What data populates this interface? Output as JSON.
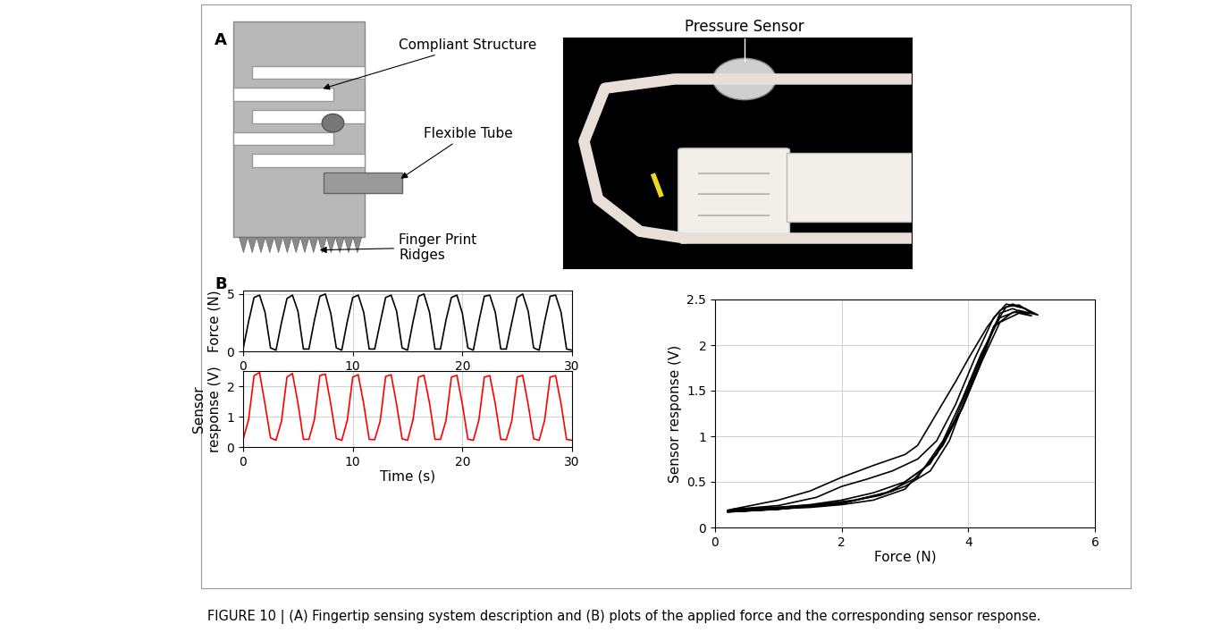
{
  "panel_labels": [
    "A",
    "B"
  ],
  "diagram": {
    "labels": [
      "Compliant Structure",
      "Flexible Tube",
      "Finger Print\nRidges"
    ]
  },
  "photo": {
    "labels": [
      "Pressure Sensor"
    ]
  },
  "caption": "FIGURE 10 | (A) Fingertip sensing system description and (B) plots of the applied force and the corresponding sensor response.",
  "chart_data": [
    {
      "type": "line",
      "ylabel": "Force (N)",
      "grid": true,
      "xlim": [
        0,
        30
      ],
      "xticks": [
        0,
        10,
        20,
        30
      ],
      "ylim": [
        0,
        5.3
      ],
      "yticks": [
        0,
        5
      ],
      "series": [
        {
          "color": "#000000",
          "x": [
            0,
            0.5,
            1,
            1.5,
            2,
            2.5,
            3,
            3.5,
            4,
            4.5,
            5,
            5.5,
            6,
            6.5,
            7,
            7.5,
            8,
            8.5,
            9,
            9.5,
            10,
            10.5,
            11,
            11.5,
            12,
            12.5,
            13,
            13.5,
            14,
            14.5,
            15,
            15.5,
            16,
            16.5,
            17,
            17.5,
            18,
            18.5,
            19,
            19.5,
            20,
            20.5,
            21,
            21.5,
            22,
            22.5,
            23,
            23.5,
            24,
            24.5,
            25,
            25.5,
            26,
            26.5,
            27,
            27.5,
            28,
            28.5,
            29,
            29.5,
            30
          ],
          "values": [
            0.2,
            2.6,
            4.7,
            4.9,
            3.4,
            0.3,
            0.1,
            2.5,
            4.6,
            4.9,
            3.5,
            0.2,
            0.2,
            2.7,
            4.8,
            5.0,
            3.3,
            0.3,
            0.1,
            2.6,
            4.7,
            4.9,
            3.4,
            0.2,
            0.2,
            2.5,
            4.7,
            4.9,
            3.5,
            0.3,
            0.1,
            2.6,
            4.8,
            5.0,
            3.4,
            0.2,
            0.2,
            2.7,
            4.7,
            4.9,
            3.3,
            0.3,
            0.1,
            2.6,
            4.8,
            4.9,
            3.4,
            0.2,
            0.2,
            2.5,
            4.7,
            5.0,
            3.5,
            0.3,
            0.1,
            2.6,
            4.8,
            4.9,
            3.4,
            0.2,
            0.1
          ]
        }
      ]
    },
    {
      "type": "line",
      "xlabel": "Time (s)",
      "ylabel": "Sensor\nresponse (V)",
      "grid": true,
      "xlim": [
        0,
        30
      ],
      "xticks": [
        0,
        10,
        20,
        30
      ],
      "ylim": [
        0,
        2.5
      ],
      "yticks": [
        0,
        1,
        2
      ],
      "series": [
        {
          "color": "#ff0000",
          "x": [
            0,
            0.5,
            1,
            1.5,
            2,
            2.5,
            3,
            3.5,
            4,
            4.5,
            5,
            5.5,
            6,
            6.5,
            7,
            7.5,
            8,
            8.5,
            9,
            9.5,
            10,
            10.5,
            11,
            11.5,
            12,
            12.5,
            13,
            13.5,
            14,
            14.5,
            15,
            15.5,
            16,
            16.5,
            17,
            17.5,
            18,
            18.5,
            19,
            19.5,
            20,
            20.5,
            21,
            21.5,
            22,
            22.5,
            23,
            23.5,
            24,
            24.5,
            25,
            25.5,
            26,
            26.5,
            27,
            27.5,
            28,
            28.5,
            29,
            29.5,
            30
          ],
          "values": [
            0.25,
            0.9,
            2.35,
            2.45,
            1.4,
            0.3,
            0.22,
            0.85,
            2.3,
            2.42,
            1.45,
            0.25,
            0.25,
            0.9,
            2.35,
            2.4,
            1.4,
            0.28,
            0.22,
            0.88,
            2.3,
            2.38,
            1.42,
            0.25,
            0.24,
            0.85,
            2.32,
            2.38,
            1.4,
            0.27,
            0.22,
            0.9,
            2.3,
            2.36,
            1.45,
            0.25,
            0.25,
            0.86,
            2.3,
            2.36,
            1.4,
            0.26,
            0.22,
            0.88,
            2.3,
            2.35,
            1.42,
            0.25,
            0.24,
            0.85,
            2.3,
            2.36,
            1.4,
            0.27,
            0.22,
            0.88,
            2.3,
            2.35,
            1.42,
            0.25,
            0.22
          ]
        }
      ]
    },
    {
      "type": "line",
      "xlabel": "Force (N)",
      "ylabel": "Sensor response (V)",
      "grid": true,
      "xlim": [
        0,
        6
      ],
      "xticks": [
        0,
        2,
        4,
        6
      ],
      "ylim": [
        0,
        2.5
      ],
      "yticks": [
        0,
        0.5,
        1,
        1.5,
        2,
        2.5
      ],
      "series": [
        {
          "color": "#000000",
          "x": [
            0.2,
            0.8,
            1.5,
            2.0,
            2.5,
            3.0,
            3.3,
            3.6,
            3.9,
            4.2,
            4.4,
            4.6,
            4.8,
            5.0,
            4.7,
            4.4,
            4.1,
            3.8,
            3.5,
            3.0,
            2.5,
            2.0,
            1.5,
            0.8,
            0.2
          ],
          "values": [
            0.18,
            0.21,
            0.25,
            0.3,
            0.38,
            0.5,
            0.65,
            0.9,
            1.3,
            1.8,
            2.2,
            2.42,
            2.44,
            2.35,
            2.36,
            2.2,
            1.7,
            1.2,
            0.8,
            0.42,
            0.3,
            0.25,
            0.22,
            0.2,
            0.18
          ]
        },
        {
          "color": "#000000",
          "x": [
            0.3,
            1.0,
            1.6,
            2.0,
            2.4,
            2.8,
            3.2,
            3.5,
            3.8,
            4.1,
            4.4,
            4.6,
            4.9,
            5.1,
            4.8,
            4.5,
            4.2,
            3.9,
            3.6,
            3.2,
            2.7,
            2.2,
            1.6,
            1.0,
            0.3
          ],
          "values": [
            0.2,
            0.24,
            0.33,
            0.45,
            0.53,
            0.62,
            0.75,
            0.95,
            1.35,
            1.85,
            2.3,
            2.45,
            2.4,
            2.33,
            2.38,
            2.3,
            1.9,
            1.4,
            0.95,
            0.55,
            0.38,
            0.3,
            0.25,
            0.22,
            0.2
          ]
        },
        {
          "color": "#000000",
          "x": [
            0.2,
            1.0,
            1.5,
            2.0,
            2.5,
            3.0,
            3.2,
            3.5,
            3.8,
            4.0,
            4.3,
            4.5,
            4.7,
            4.9
          ],
          "values": [
            0.19,
            0.3,
            0.4,
            0.55,
            0.68,
            0.8,
            0.9,
            1.25,
            1.6,
            1.85,
            2.2,
            2.38,
            2.45,
            2.4
          ]
        },
        {
          "color": "#000000",
          "x": [
            0.2,
            1.0,
            2.0,
            2.6,
            3.0,
            3.4,
            3.7,
            4.0,
            4.3,
            4.5,
            4.7,
            5.0,
            4.8,
            4.5,
            4.2,
            3.9,
            3.4,
            2.8,
            2.0,
            1.0,
            0.2
          ],
          "values": [
            0.17,
            0.2,
            0.27,
            0.35,
            0.45,
            0.62,
            0.95,
            1.5,
            2.0,
            2.35,
            2.4,
            2.32,
            2.35,
            2.25,
            1.8,
            1.3,
            0.7,
            0.4,
            0.26,
            0.2,
            0.17
          ]
        }
      ]
    }
  ]
}
